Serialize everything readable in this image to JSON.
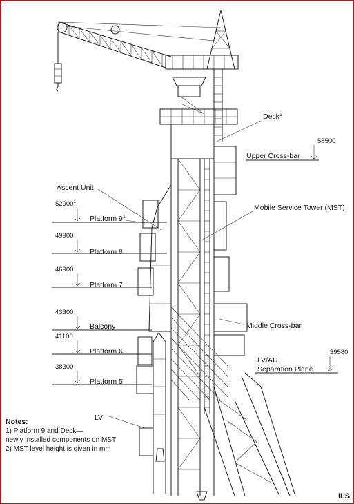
{
  "labels": {
    "deck": "Deck",
    "deck_sup": "1",
    "upper_crossbar": "Upper Cross-bar",
    "ascent_unit": "Ascent Unit",
    "mst": "Mobile Service Tower (MST)",
    "platform9": "Platform 9",
    "platform9_sup": "1",
    "platform8": "Platform 8",
    "platform7": "Platform 7",
    "balcony": "Balcony",
    "middle_crossbar": "Middle Cross-bar",
    "platform6": "Platform 6",
    "separation_line1": "LV/AU",
    "separation_line2": "Separation Plane",
    "platform5": "Platform 5",
    "lv": "LV"
  },
  "levels": {
    "upper_crossbar": "58500",
    "platform9": "52900",
    "platform9_sup": "1",
    "platform8": "49900",
    "platform7": "46900",
    "balcony": "43300",
    "platform6": "41100",
    "separation": "39580",
    "platform5": "38300"
  },
  "notes": {
    "title": "Notes:",
    "line1": "1) Platform 9 and Deck—",
    "line2": "newly installed components on MST",
    "line3": "2) MST level height is given in mm"
  },
  "brand": "ILS",
  "colors": {
    "frame": "#b01818",
    "ink": "#222222"
  }
}
